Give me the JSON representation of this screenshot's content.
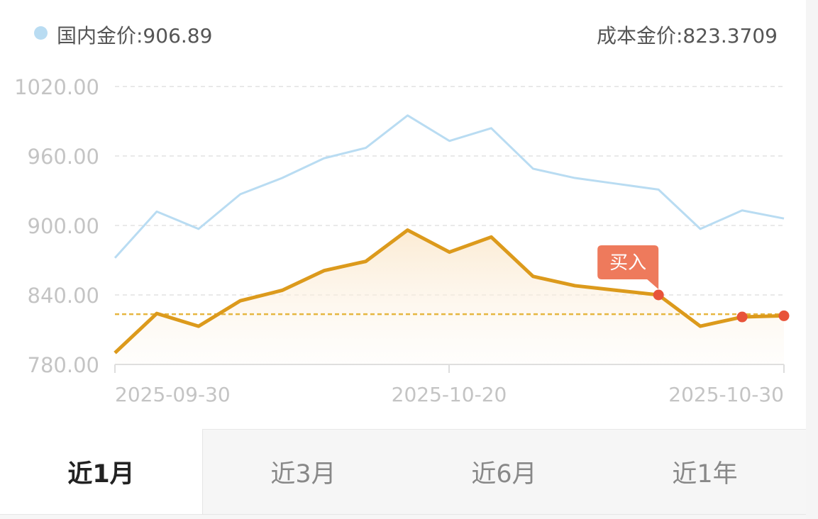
{
  "header": {
    "series_label": "国内金价:906.89",
    "cost_label": "成本金价:823.3709"
  },
  "colors": {
    "domestic_line": "#b9dcf2",
    "domestic_dot": "#b9dcf2",
    "holding_line": "#dc9a1c",
    "cost_line": "#e6b640",
    "marker": "#e8533a",
    "buy_tag": "#ee7a5c"
  },
  "chart_data": {
    "type": "line",
    "ylim": [
      780,
      1020
    ],
    "yticks": [
      "1020.00",
      "960.00",
      "900.00",
      "840.00",
      "780.00"
    ],
    "ytick_values": [
      1020,
      960,
      900,
      840,
      780
    ],
    "xlim": [
      "2025-09-30",
      "2025-10-30"
    ],
    "xticks": [
      "2025-09-30",
      "2025-10-20",
      "2025-10-30"
    ],
    "grid": true,
    "cost_value": 823.37,
    "buy_label": "买入",
    "buy_index": 13,
    "marker_indices": [
      13,
      15,
      16
    ],
    "series": [
      {
        "key": "domestic",
        "values": [
          872,
          912,
          897,
          927,
          941,
          958,
          967,
          995,
          973,
          984,
          949,
          941,
          936,
          931,
          897,
          913,
          906
        ]
      },
      {
        "key": "holding",
        "values": [
          790,
          824,
          813,
          835,
          844,
          861,
          869,
          896,
          877,
          890,
          856,
          848,
          844,
          840,
          813,
          821,
          822
        ]
      }
    ]
  },
  "tabs": [
    {
      "label": "近1月",
      "active": true
    },
    {
      "label": "近3月",
      "active": false
    },
    {
      "label": "近6月",
      "active": false
    },
    {
      "label": "近1年",
      "active": false
    }
  ]
}
